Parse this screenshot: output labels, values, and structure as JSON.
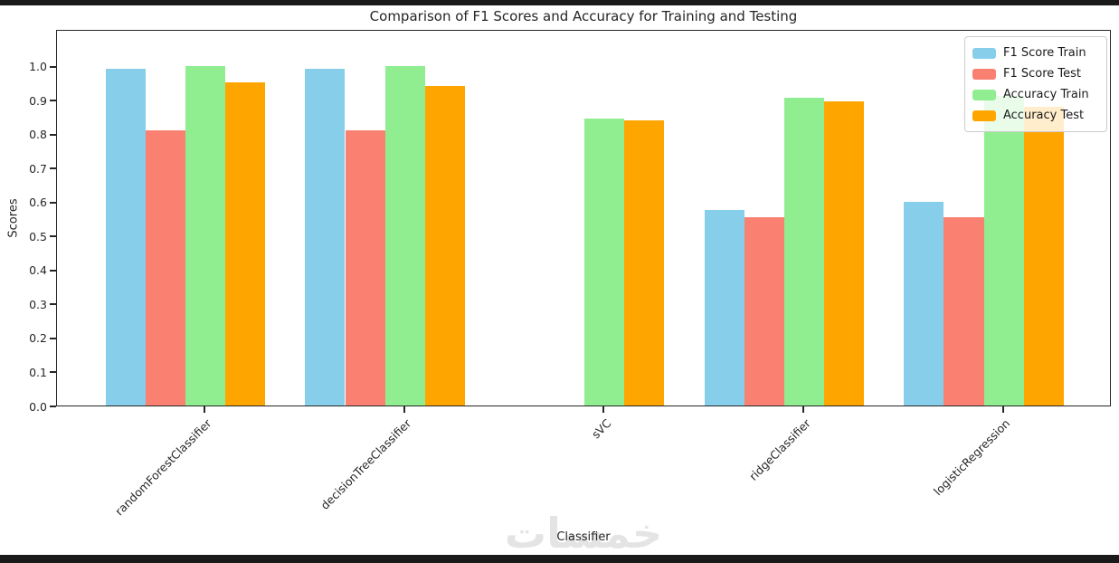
{
  "page": {
    "watermark": "خمسات"
  },
  "chart_data": {
    "type": "bar",
    "title": "Comparison of F1 Scores and Accuracy for Training and Testing",
    "xlabel": "Classifier",
    "ylabel": "Scores",
    "categories": [
      "randomForestClassifier",
      "decisionTreeClassifier",
      "sVC",
      "ridgeClassifier",
      "logisticRegression"
    ],
    "series": [
      {
        "name": "F1 Score Train",
        "color": "#87CEEB",
        "values": [
          0.99,
          0.99,
          0.0,
          0.575,
          0.6
        ]
      },
      {
        "name": "F1 Score Test",
        "color": "#FA8072",
        "values": [
          0.81,
          0.81,
          0.0,
          0.555,
          0.555
        ]
      },
      {
        "name": "Accuracy Train",
        "color": "#90EE90",
        "values": [
          0.998,
          0.998,
          0.845,
          0.905,
          0.91
        ]
      },
      {
        "name": "Accuracy Test",
        "color": "#FFA500",
        "values": [
          0.95,
          0.94,
          0.84,
          0.895,
          0.88
        ]
      }
    ],
    "yticks": [
      "0.0",
      "0.1",
      "0.2",
      "0.3",
      "0.4",
      "0.5",
      "0.6",
      "0.7",
      "0.8",
      "0.9",
      "1.0"
    ],
    "ylim": [
      0,
      1.108
    ],
    "legend_position": "upper right",
    "grid": false
  }
}
